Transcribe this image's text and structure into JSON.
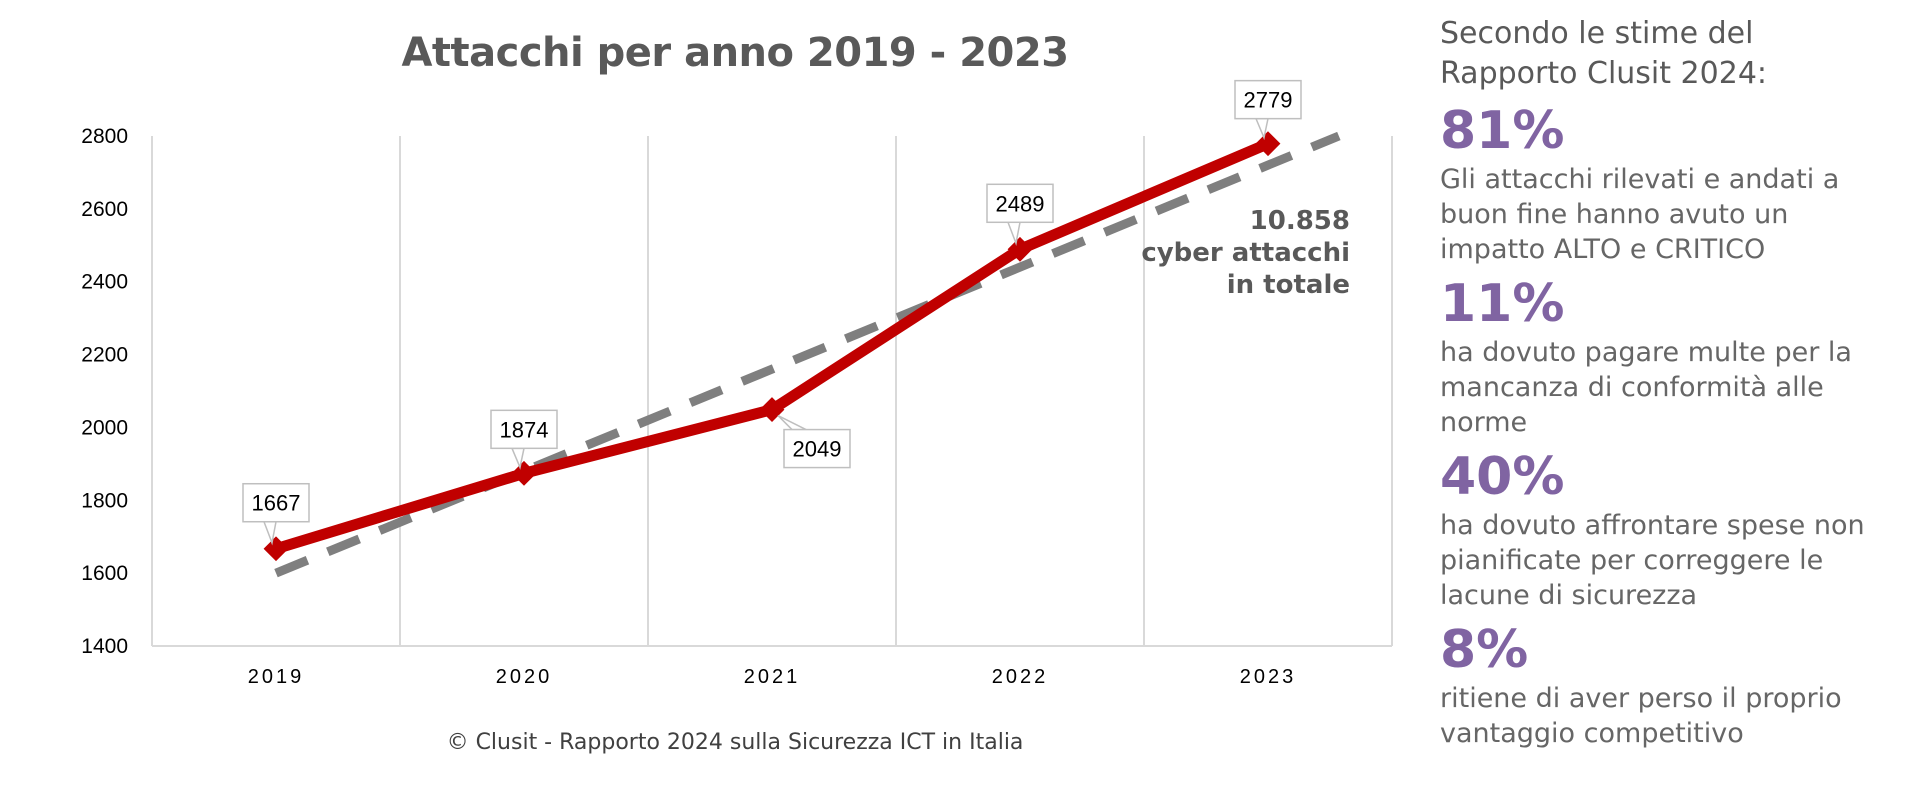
{
  "chart_data": {
    "type": "line",
    "title": "Attacchi per anno 2019 - 2023",
    "categories": [
      "2019",
      "2020",
      "2021",
      "2022",
      "2023"
    ],
    "series": [
      {
        "values": [
          1667,
          1874,
          2049,
          2489,
          2779
        ],
        "color": "#c00000",
        "style": "solid"
      }
    ],
    "trendline": {
      "style": "dashed",
      "color": "#7f7f7f",
      "values": [
        1600,
        1880,
        2160,
        2440,
        2720
      ],
      "extends_to": 2800
    },
    "ylim": [
      1400,
      2800
    ],
    "yticks": [
      1400,
      1600,
      1800,
      2000,
      2200,
      2400,
      2600,
      2800
    ],
    "grid": "vertical",
    "data_labels": [
      "1667",
      "1874",
      "2049",
      "2489",
      "2779"
    ],
    "annotation": [
      "10.858",
      "cyber attacchi",
      "in totale"
    ],
    "source": "© Clusit - Rapporto 2024 sulla Sicurezza ICT in Italia"
  },
  "side_panel": {
    "heading_lines": [
      "Secondo le stime del",
      "Rapporto Clusit 2024:"
    ],
    "stats": [
      {
        "value": "81%",
        "lines": [
          "Gli attacchi rilevati e andati a",
          "buon fine hanno avuto un",
          "impatto ALTO e CRITICO"
        ]
      },
      {
        "value": "11%",
        "lines": [
          "ha dovuto pagare multe per la",
          "mancanza di conformità alle",
          "norme"
        ]
      },
      {
        "value": "40%",
        "lines": [
          "ha dovuto affrontare spese non",
          "pianificate per correggere le",
          "lacune di sicurezza"
        ]
      },
      {
        "value": "8%",
        "lines": [
          "ritiene di aver perso il proprio",
          "vantaggio competitivo"
        ]
      }
    ],
    "accent_color": "#8064a2"
  }
}
